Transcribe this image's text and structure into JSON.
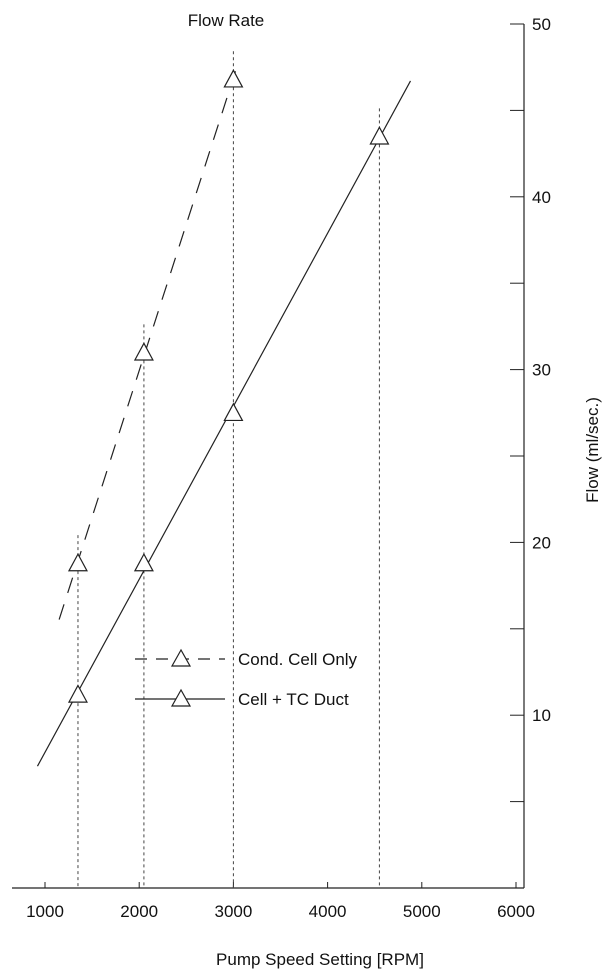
{
  "chart_data": {
    "type": "line",
    "title": "Flow Rate",
    "xlabel": "Pump Speed Setting [RPM]",
    "ylabel": "Flow (ml/sec.)",
    "xlim": [
      900,
      6000
    ],
    "ylim": [
      0,
      50
    ],
    "x_ticks": [
      "1000",
      "2000",
      "3000",
      "4000",
      "5000",
      "6000"
    ],
    "y_ticks": [
      "10",
      "20",
      "30",
      "40",
      "50"
    ],
    "y_axis_side": "right",
    "grid": false,
    "legend_position": "bottom-center",
    "series": [
      {
        "name": "Cond. Cell Only",
        "style": "dashed",
        "marker": "triangle",
        "x": [
          1350,
          2050,
          3000
        ],
        "y": [
          18.8,
          31.0,
          46.8
        ]
      },
      {
        "name": "Cell + TC Duct",
        "style": "solid",
        "marker": "triangle",
        "x": [
          1350,
          2050,
          3000,
          4550
        ],
        "y": [
          11.2,
          18.8,
          27.5,
          43.5
        ]
      }
    ],
    "colors": {
      "line": "#222222",
      "guide": "#444444"
    }
  }
}
